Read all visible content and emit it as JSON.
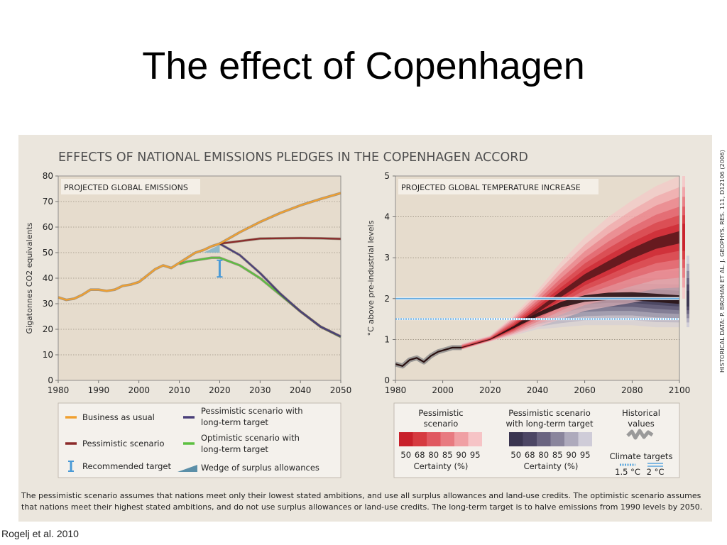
{
  "slide": {
    "title": "The effect of Copenhagen",
    "credit": "Rogelj et al. 2010",
    "side_note": "HISTORICAL DATA: P. BROHAN ET AL. J. GEOPHYS. RES. 111, D12106 (2006)"
  },
  "figure": {
    "heading": "EFFECTS OF NATIONAL EMISSIONS PLEDGES IN THE COPENHAGEN ACCORD",
    "footnote_line1": "The pessimistic scenario assumes that nations meet only their lowest stated ambitions, and use all surplus allowances and land-use credits. The optimistic scenario assumes",
    "footnote_line2": "that nations meet their highest stated ambitions, and do not use surplus allowances or land-use credits. The long-term target is to halve emissions from 1990 levels by 2050."
  },
  "legend_left": {
    "bau": "Business as usual",
    "pess_lt_1": "Pessimistic scenario with",
    "pess_lt_2": "long-term target",
    "pess": "Pessimistic scenario",
    "opt_lt_1": "Optimistic scenario with",
    "opt_lt_2": "long-term target",
    "rec": "Recommended target",
    "wedge": "Wedge of surplus allowances"
  },
  "legend_right": {
    "pess_title_1": "Pessimistic",
    "pess_title_2": "scenario",
    "pess_lt_title_1": "Pessimistic scenario",
    "pess_lt_title_2": "with long-term target",
    "hist_title_1": "Historical",
    "hist_title_2": "values",
    "certainty_levels": [
      "50",
      "68",
      "80",
      "85",
      "90",
      "95"
    ],
    "certainty_label": "Certainty (%)",
    "climate_targets": "Climate targets",
    "t15": "1.5 °C",
    "t2": "2 °C"
  },
  "colors": {
    "bau": "#f0a030",
    "pess": "#8b2a2a",
    "pess_lt": "#4a3f7a",
    "opt_lt": "#5cc040",
    "target_line": "#6aaee0",
    "pess_swatches": [
      "#c8202a",
      "#d63a40",
      "#e05860",
      "#e87a80",
      "#f0a0a4",
      "#f6c4c6"
    ],
    "pess_lt_swatches": [
      "#3a3550",
      "#4c4664",
      "#6a6480",
      "#8a859c",
      "#aeaabc",
      "#cfccd8"
    ]
  },
  "chart_data": [
    {
      "type": "line",
      "title": "PROJECTED GLOBAL EMISSIONS",
      "ylabel": "Gigatonnes CO2 equivalents",
      "xlim": [
        1980,
        2050
      ],
      "ylim": [
        0,
        80
      ],
      "xticks": [
        1980,
        1990,
        2000,
        2010,
        2020,
        2030,
        2040,
        2050
      ],
      "yticks": [
        0,
        10,
        20,
        30,
        40,
        50,
        60,
        70,
        80
      ],
      "grid": "horizontal",
      "series": [
        {
          "name": "Business as usual",
          "x": [
            1980,
            1982,
            1984,
            1986,
            1988,
            1990,
            1992,
            1994,
            1996,
            1998,
            2000,
            2002,
            2004,
            2006,
            2008,
            2010,
            2012,
            2014,
            2016,
            2018,
            2020,
            2025,
            2030,
            2035,
            2040,
            2045,
            2050
          ],
          "y": [
            32.5,
            31.5,
            32,
            33.5,
            35.5,
            35.5,
            35,
            35.5,
            37,
            37.5,
            38.5,
            41,
            43.5,
            45,
            44,
            46,
            48,
            50,
            51,
            52.5,
            53.5,
            58,
            62,
            65.5,
            68.5,
            71,
            73.3
          ]
        },
        {
          "name": "Pessimistic scenario",
          "x": [
            2020,
            2025,
            2030,
            2035,
            2040,
            2045,
            2050
          ],
          "y": [
            53.5,
            54.5,
            55.5,
            55.6,
            55.7,
            55.6,
            55.4
          ]
        },
        {
          "name": "Pessimistic scenario with long-term target",
          "x": [
            2020,
            2025,
            2030,
            2035,
            2040,
            2045,
            2050
          ],
          "y": [
            53.5,
            49,
            42,
            34,
            27,
            21,
            17.2
          ]
        },
        {
          "name": "Optimistic scenario with long-term target",
          "x": [
            2010,
            2012,
            2014,
            2016,
            2018,
            2020,
            2025,
            2030,
            2035,
            2040,
            2045,
            2050
          ],
          "y": [
            45.5,
            46.5,
            47,
            47.5,
            48,
            48,
            45,
            40,
            33.5,
            27,
            21,
            17
          ]
        }
      ],
      "annotations": [
        {
          "name": "Recommended target",
          "x": 2020,
          "y": 44,
          "range": [
            40.5,
            47
          ]
        },
        {
          "name": "Wedge of surplus allowances",
          "x": [
            2016,
            2020
          ],
          "y": [
            50,
            53
          ]
        }
      ]
    },
    {
      "type": "area",
      "title": "PROJECTED GLOBAL TEMPERATURE INCREASE",
      "ylabel": "°C above pre-industrial levels",
      "xlim": [
        1980,
        2100
      ],
      "ylim": [
        0,
        5
      ],
      "xticks": [
        1980,
        2000,
        2020,
        2040,
        2060,
        2080,
        2100
      ],
      "yticks": [
        0,
        1,
        2,
        3,
        4,
        5
      ],
      "grid": "horizontal",
      "climate_targets": [
        1.5,
        2
      ],
      "series": [
        {
          "name": "Historical values",
          "x": [
            1980,
            1983,
            1986,
            1989,
            1992,
            1995,
            1998,
            2001,
            2004,
            2008
          ],
          "y": [
            0.4,
            0.35,
            0.5,
            0.55,
            0.45,
            0.6,
            0.7,
            0.75,
            0.8,
            0.8
          ]
        },
        {
          "name": "Pessimistic scenario",
          "x": [
            2008,
            2020,
            2030,
            2040,
            2050,
            2060,
            2070,
            2080,
            2090,
            2100
          ],
          "median": [
            0.8,
            1.0,
            1.3,
            1.7,
            2.1,
            2.5,
            2.8,
            3.1,
            3.35,
            3.5
          ],
          "band95_low": [
            0.75,
            0.95,
            1.1,
            1.3,
            1.5,
            1.7,
            1.8,
            1.9,
            2.0,
            2.0
          ],
          "band95_high": [
            0.9,
            1.1,
            1.6,
            2.2,
            2.9,
            3.5,
            4.0,
            4.4,
            4.75,
            5.0
          ]
        },
        {
          "name": "Pessimistic scenario with long-term target",
          "x": [
            2008,
            2020,
            2030,
            2040,
            2050,
            2060,
            2070,
            2080,
            2090,
            2100
          ],
          "median": [
            0.8,
            1.0,
            1.3,
            1.6,
            1.85,
            2.0,
            2.05,
            2.05,
            2.0,
            1.95
          ],
          "band95_low": [
            0.75,
            0.95,
            1.1,
            1.25,
            1.3,
            1.35,
            1.35,
            1.35,
            1.3,
            1.3
          ],
          "band95_high": [
            0.9,
            1.1,
            1.55,
            2.05,
            2.45,
            2.7,
            2.85,
            2.95,
            3.0,
            3.05
          ]
        }
      ],
      "certainty_levels": [
        50,
        68,
        80,
        85,
        90,
        95
      ]
    }
  ]
}
